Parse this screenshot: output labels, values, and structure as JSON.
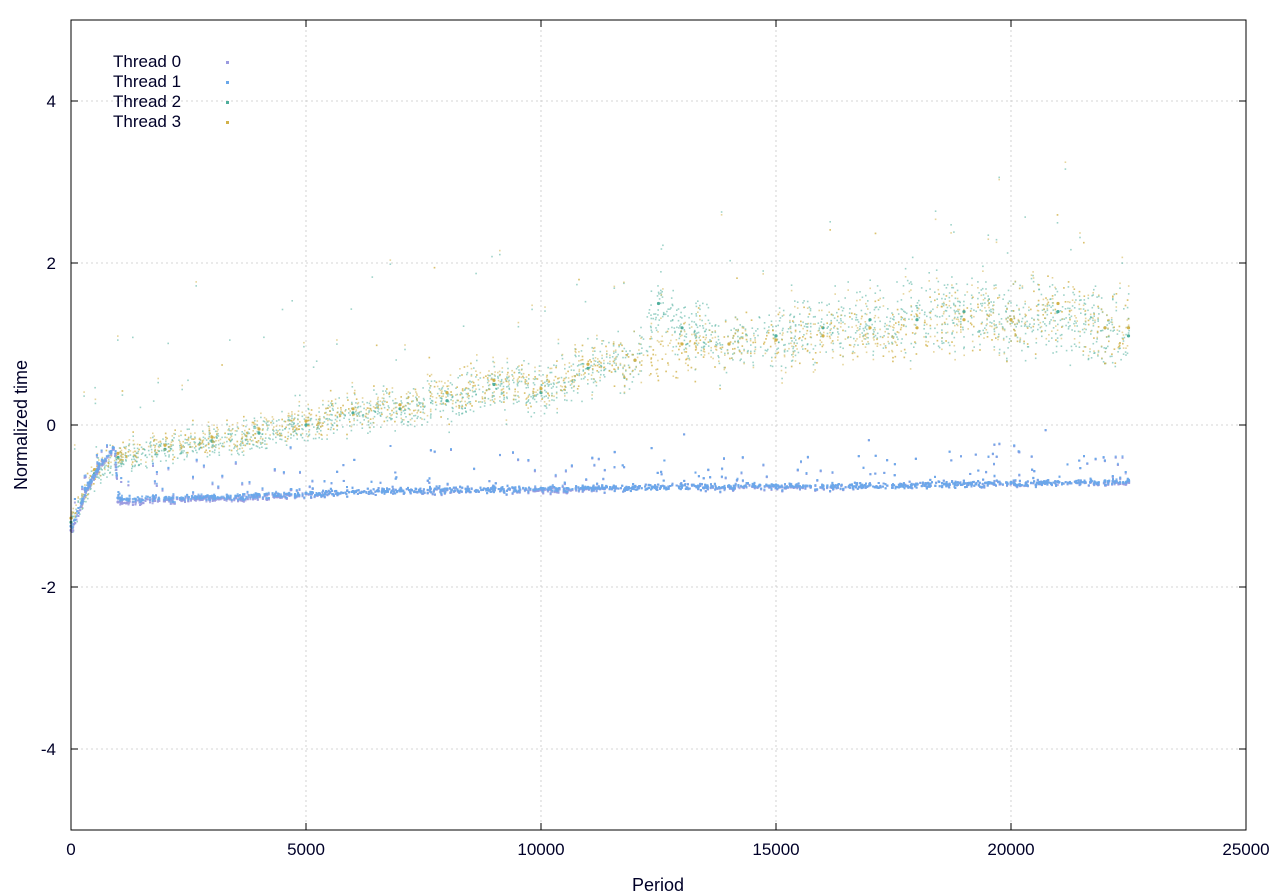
{
  "chart_data": {
    "type": "scatter",
    "title": "",
    "xlabel": "Period",
    "ylabel": "Normalized time",
    "xlim": [
      0,
      25000
    ],
    "ylim": [
      -5,
      5
    ],
    "x_ticks": [
      0,
      5000,
      10000,
      15000,
      20000,
      25000
    ],
    "x_tick_labels": [
      "0",
      "5000",
      "10000",
      "15000",
      "20000",
      "25000"
    ],
    "y_ticks": [
      -4,
      -2,
      0,
      2,
      4
    ],
    "y_tick_labels": [
      "-4",
      "-2",
      "0",
      "2",
      "4"
    ],
    "grid": true,
    "legend_position": "top-left",
    "series": [
      {
        "name": "Thread 0",
        "color": "#9b9be0",
        "points": [
          [
            0,
            -1.3
          ],
          [
            300,
            -0.8
          ],
          [
            600,
            -0.5
          ],
          [
            900,
            -0.3
          ],
          [
            1000,
            -0.95
          ],
          [
            2000,
            -0.92
          ],
          [
            3000,
            -0.9
          ],
          [
            4000,
            -0.88
          ],
          [
            5000,
            -0.85
          ],
          [
            6000,
            -0.82
          ],
          [
            7000,
            -0.8
          ],
          [
            8000,
            -0.8
          ],
          [
            9000,
            -0.78
          ],
          [
            10000,
            -0.8
          ],
          [
            11000,
            -0.78
          ],
          [
            12000,
            -0.76
          ],
          [
            13000,
            -0.75
          ],
          [
            14000,
            -0.76
          ],
          [
            15000,
            -0.75
          ],
          [
            16000,
            -0.76
          ],
          [
            17000,
            -0.74
          ],
          [
            18000,
            -0.73
          ],
          [
            19000,
            -0.72
          ],
          [
            20000,
            -0.72
          ],
          [
            21000,
            -0.7
          ],
          [
            22000,
            -0.7
          ],
          [
            22500,
            -0.7
          ]
        ]
      },
      {
        "name": "Thread 1",
        "color": "#6aa8ea",
        "points": [
          [
            0,
            -1.25
          ],
          [
            300,
            -0.78
          ],
          [
            600,
            -0.48
          ],
          [
            900,
            -0.28
          ],
          [
            1000,
            -0.9
          ],
          [
            2000,
            -0.9
          ],
          [
            3000,
            -0.88
          ],
          [
            4000,
            -0.86
          ],
          [
            5000,
            -0.84
          ],
          [
            6000,
            -0.82
          ],
          [
            7000,
            -0.8
          ],
          [
            8000,
            -0.79
          ],
          [
            9000,
            -0.78
          ],
          [
            10000,
            -0.78
          ],
          [
            11000,
            -0.77
          ],
          [
            12000,
            -0.76
          ],
          [
            13000,
            -0.75
          ],
          [
            14000,
            -0.75
          ],
          [
            15000,
            -0.74
          ],
          [
            16000,
            -0.75
          ],
          [
            17000,
            -0.74
          ],
          [
            18000,
            -0.73
          ],
          [
            19000,
            -0.72
          ],
          [
            20000,
            -0.71
          ],
          [
            21000,
            -0.7
          ],
          [
            22000,
            -0.69
          ],
          [
            22500,
            -0.68
          ]
        ]
      },
      {
        "name": "Thread 2",
        "color": "#4fae9c",
        "points": [
          [
            0,
            -1.2
          ],
          [
            500,
            -0.6
          ],
          [
            1000,
            -0.4
          ],
          [
            2000,
            -0.3
          ],
          [
            3000,
            -0.2
          ],
          [
            4000,
            -0.1
          ],
          [
            5000,
            0.0
          ],
          [
            6000,
            0.15
          ],
          [
            7000,
            0.2
          ],
          [
            8000,
            0.3
          ],
          [
            9000,
            0.5
          ],
          [
            10000,
            0.4
          ],
          [
            11000,
            0.7
          ],
          [
            12000,
            0.8
          ],
          [
            12500,
            1.5
          ],
          [
            13000,
            1.2
          ],
          [
            14000,
            1.0
          ],
          [
            15000,
            1.1
          ],
          [
            16000,
            1.2
          ],
          [
            17000,
            1.3
          ],
          [
            18000,
            1.3
          ],
          [
            19000,
            1.4
          ],
          [
            20000,
            1.3
          ],
          [
            21000,
            1.4
          ],
          [
            22000,
            1.2
          ],
          [
            22500,
            1.1
          ]
        ]
      },
      {
        "name": "Thread 3",
        "color": "#d2b24a",
        "points": [
          [
            0,
            -1.15
          ],
          [
            500,
            -0.55
          ],
          [
            1000,
            -0.35
          ],
          [
            2000,
            -0.25
          ],
          [
            3000,
            -0.15
          ],
          [
            4000,
            -0.05
          ],
          [
            5000,
            0.05
          ],
          [
            6000,
            0.2
          ],
          [
            7000,
            0.25
          ],
          [
            8000,
            0.4
          ],
          [
            9000,
            0.55
          ],
          [
            10000,
            0.45
          ],
          [
            11000,
            0.75
          ],
          [
            12000,
            0.8
          ],
          [
            13000,
            1.0
          ],
          [
            14000,
            1.0
          ],
          [
            15000,
            1.05
          ],
          [
            16000,
            1.1
          ],
          [
            17000,
            1.2
          ],
          [
            18000,
            1.2
          ],
          [
            19000,
            1.3
          ],
          [
            20000,
            1.3
          ],
          [
            21000,
            1.5
          ],
          [
            22000,
            1.2
          ],
          [
            22500,
            1.2
          ]
        ]
      }
    ]
  }
}
